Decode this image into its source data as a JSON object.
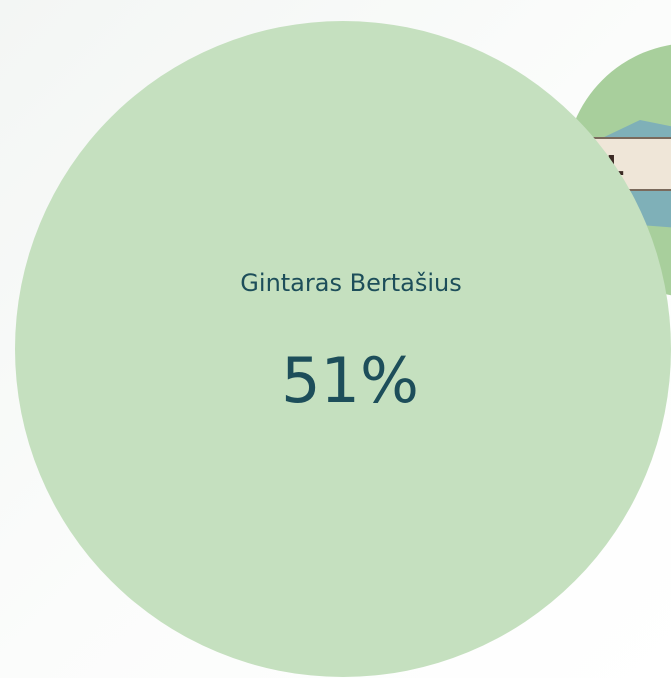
{
  "bubbles": [
    {
      "label": "Gintaras Bertašius",
      "value": "51%"
    }
  ],
  "logo": {
    "text": "VIL"
  }
}
